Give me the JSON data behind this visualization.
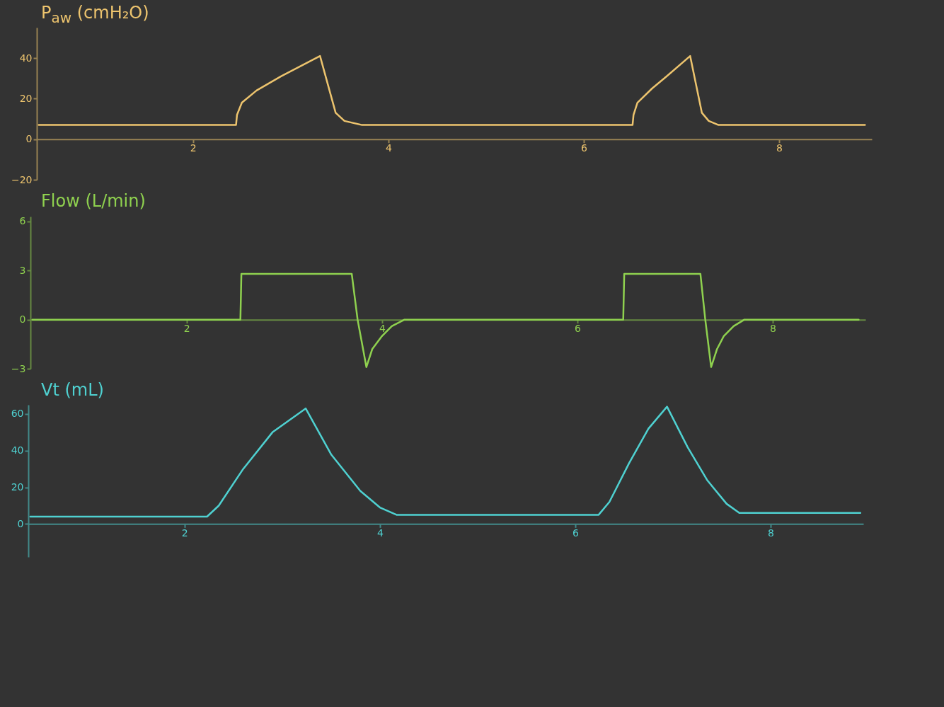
{
  "chart_data": [
    {
      "type": "line",
      "ylabel": "P$_{aw}$ (cmH₂O)",
      "xlim": [
        0.4,
        8.95
      ],
      "ylim": [
        -20,
        55
      ],
      "xticks": [
        2,
        4,
        6,
        8
      ],
      "yticks": [
        -20,
        0,
        20,
        40
      ],
      "x": [
        0.42,
        2.44,
        2.45,
        2.5,
        2.65,
        2.9,
        3.3,
        3.46,
        3.55,
        3.73,
        6.5,
        6.51,
        6.55,
        6.7,
        6.85,
        7.09,
        7.21,
        7.28,
        7.38,
        8.88
      ],
      "series": [
        {
          "color": "#edc46e",
          "values": [
            7,
            7,
            12,
            18,
            24,
            31,
            41,
            13,
            9,
            7,
            7,
            12,
            18,
            25,
            31,
            41,
            13,
            9,
            7,
            7
          ]
        }
      ]
    },
    {
      "type": "line",
      "ylabel": "Flow (L/min)",
      "xlim": [
        0.4,
        8.95
      ],
      "ylim": [
        -3,
        6.3
      ],
      "xticks": [
        2,
        4,
        6,
        8
      ],
      "yticks": [
        -3,
        0,
        3,
        6
      ],
      "x": [
        0.42,
        2.55,
        2.56,
        3.69,
        3.75,
        3.84,
        3.9,
        4.0,
        4.1,
        4.23,
        6.47,
        6.48,
        7.26,
        7.31,
        7.37,
        7.43,
        7.5,
        7.6,
        7.71,
        8.88
      ],
      "series": [
        {
          "color": "#8fd14f",
          "values": [
            0,
            0,
            2.8,
            2.8,
            0,
            -2.9,
            -1.8,
            -1,
            -0.4,
            0,
            0,
            2.8,
            2.8,
            0,
            -2.9,
            -1.8,
            -1,
            -0.4,
            0,
            0
          ]
        }
      ]
    },
    {
      "type": "line",
      "ylabel": "Vt (mL)",
      "xlim": [
        0.4,
        8.95
      ],
      "ylim": [
        -18,
        65
      ],
      "xticks": [
        2,
        4,
        6,
        8
      ],
      "yticks": [
        0,
        20,
        40,
        60
      ],
      "x": [
        0.42,
        2.23,
        2.35,
        2.6,
        2.9,
        3.24,
        3.5,
        3.8,
        4.0,
        4.17,
        6.24,
        6.35,
        6.55,
        6.75,
        6.94,
        7.15,
        7.35,
        7.55,
        7.68,
        8.92
      ],
      "series": [
        {
          "color": "#4fd1d1",
          "values": [
            4,
            4,
            10,
            30,
            50,
            63,
            38,
            18,
            9,
            5,
            5,
            12,
            33,
            52,
            64,
            42,
            24,
            11,
            6,
            6
          ]
        }
      ]
    }
  ]
}
